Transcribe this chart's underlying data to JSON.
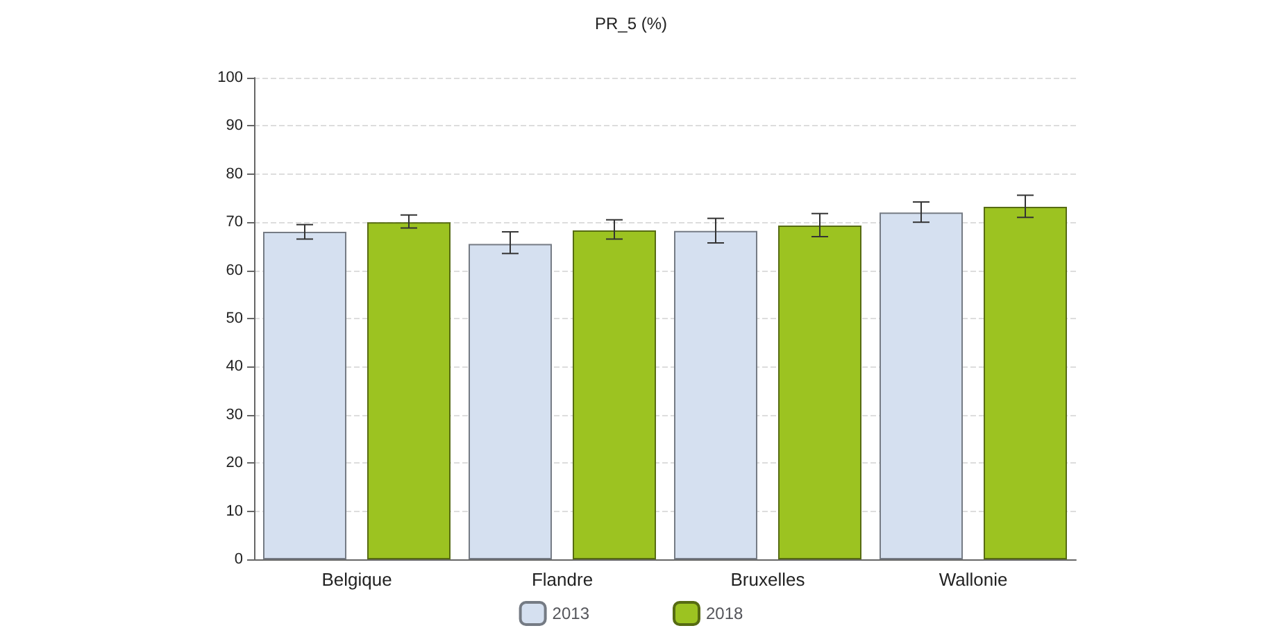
{
  "chart_data": {
    "type": "bar",
    "title": "PR_5 (%)",
    "categories": [
      "Belgique",
      "Flandre",
      "Bruxelles",
      "Wallonie"
    ],
    "series": [
      {
        "name": "2013",
        "color": "#d5e0f0",
        "values": [
          68,
          65.5,
          68.2,
          72
        ],
        "errors": [
          [
            66.5,
            69.5
          ],
          [
            63.5,
            68
          ],
          [
            65.7,
            70.8
          ],
          [
            70,
            74.2
          ]
        ]
      },
      {
        "name": "2018",
        "color": "#9cc321",
        "values": [
          70,
          68.3,
          69.3,
          73.2
        ],
        "errors": [
          [
            68.8,
            71.5
          ],
          [
            66.5,
            70.5
          ],
          [
            67,
            71.8
          ],
          [
            71,
            75.6
          ]
        ]
      }
    ],
    "ylim": [
      0,
      100
    ],
    "yticks": [
      0,
      10,
      20,
      30,
      40,
      50,
      60,
      70,
      80,
      90,
      100
    ],
    "grid": "y",
    "legend": "bottom"
  }
}
